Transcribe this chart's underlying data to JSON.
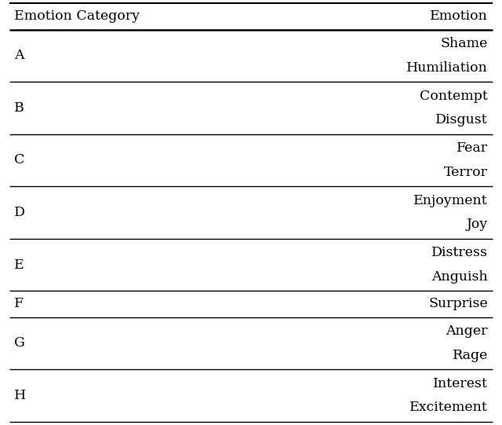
{
  "col_headers": [
    "Emotion Category",
    "Emotion"
  ],
  "rows": [
    {
      "category": "A",
      "emotions": [
        "Shame",
        "Humiliation"
      ]
    },
    {
      "category": "B",
      "emotions": [
        "Contempt",
        "Disgust"
      ]
    },
    {
      "category": "C",
      "emotions": [
        "Fear",
        "Terror"
      ]
    },
    {
      "category": "D",
      "emotions": [
        "Enjoyment",
        "Joy"
      ]
    },
    {
      "category": "E",
      "emotions": [
        "Distress",
        "Anguish"
      ]
    },
    {
      "category": "F",
      "emotions": [
        "Surprise"
      ]
    },
    {
      "category": "G",
      "emotions": [
        "Anger",
        "Rage"
      ]
    },
    {
      "category": "H",
      "emotions": [
        "Interest",
        "Excitement"
      ]
    }
  ],
  "bg_color": "#ffffff",
  "text_color": "#000000",
  "line_color": "#000000",
  "header_fontsize": 12.5,
  "cell_fontsize": 12.5,
  "fig_width": 6.4,
  "fig_height": 5.41
}
